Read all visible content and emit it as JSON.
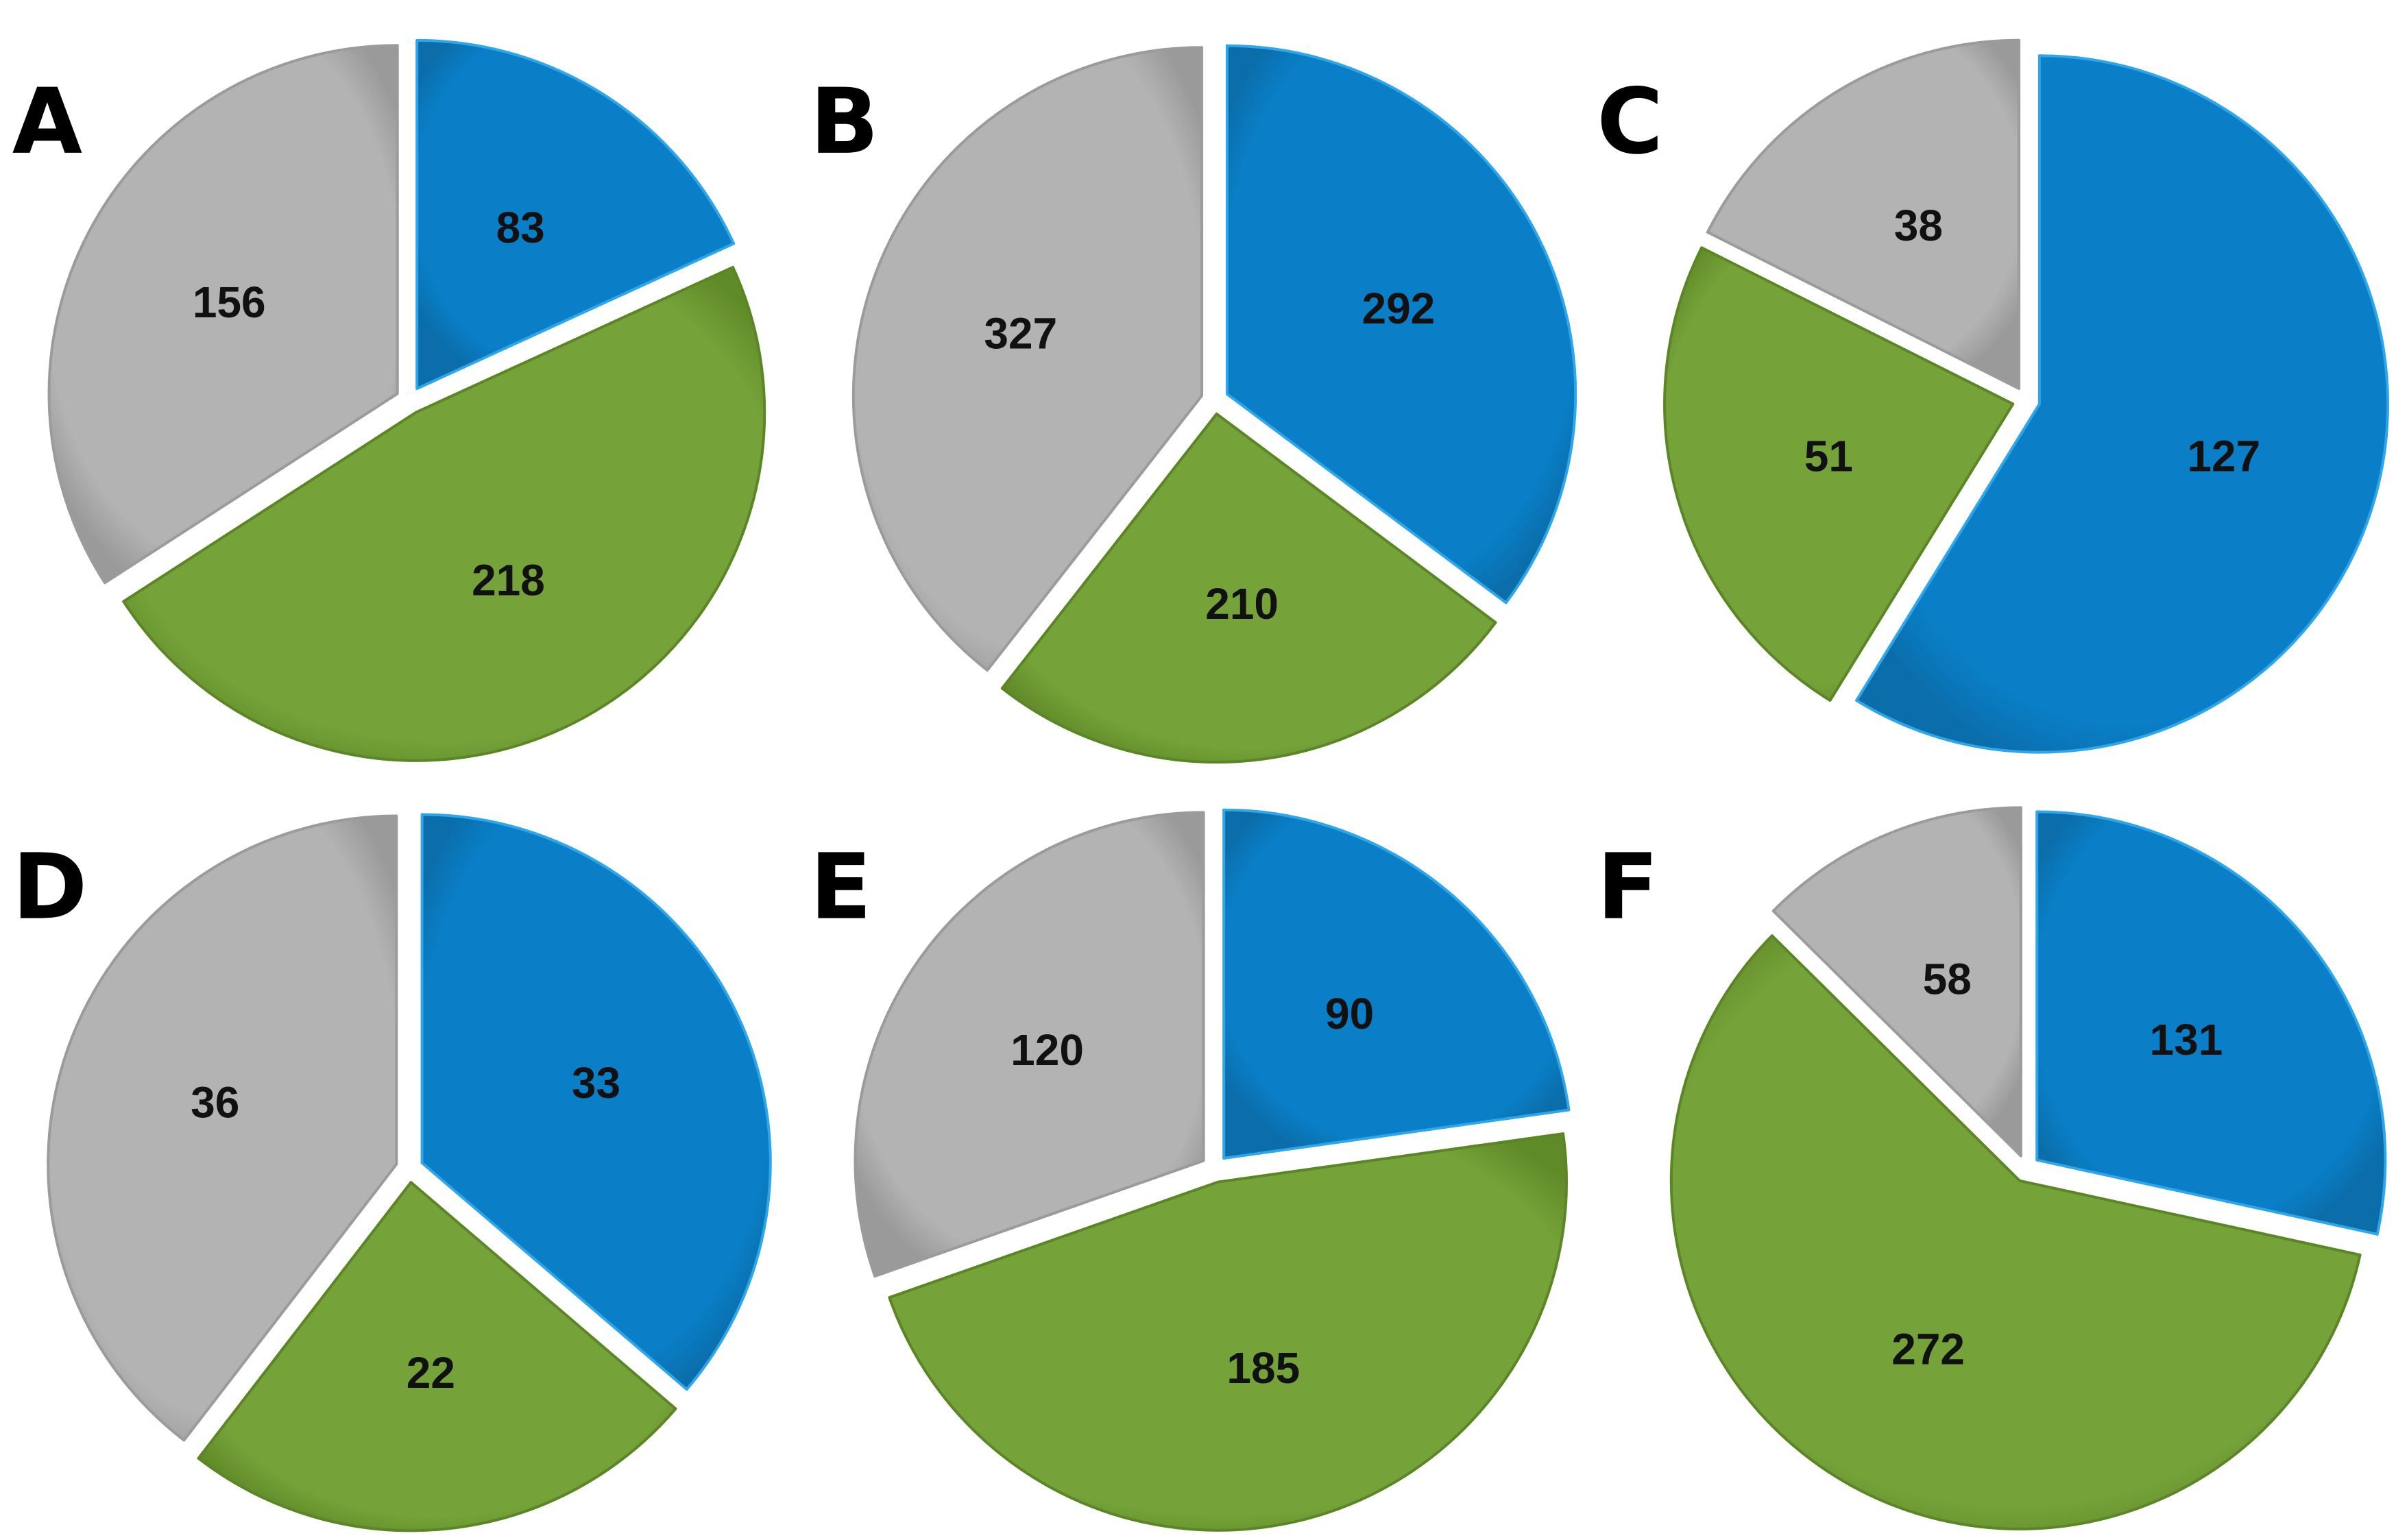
{
  "colors": {
    "blue": "#0A7EC6",
    "green": "#76A23A",
    "gray": "#B3B3B3"
  },
  "chart_data": [
    {
      "panel": "A",
      "type": "pie",
      "values": {
        "blue": 83,
        "green": 218,
        "gray": 156
      }
    },
    {
      "panel": "B",
      "type": "pie",
      "values": {
        "blue": 292,
        "green": 210,
        "gray": 327
      }
    },
    {
      "panel": "C",
      "type": "pie",
      "values": {
        "blue": 127,
        "green": 51,
        "gray": 38
      }
    },
    {
      "panel": "D",
      "type": "pie",
      "values": {
        "blue": 33,
        "green": 22,
        "gray": 36
      }
    },
    {
      "panel": "E",
      "type": "pie",
      "values": {
        "blue": 90,
        "green": 185,
        "gray": 120
      }
    },
    {
      "panel": "F",
      "type": "pie",
      "values": {
        "blue": 131,
        "green": 272,
        "gray": 58
      }
    }
  ]
}
